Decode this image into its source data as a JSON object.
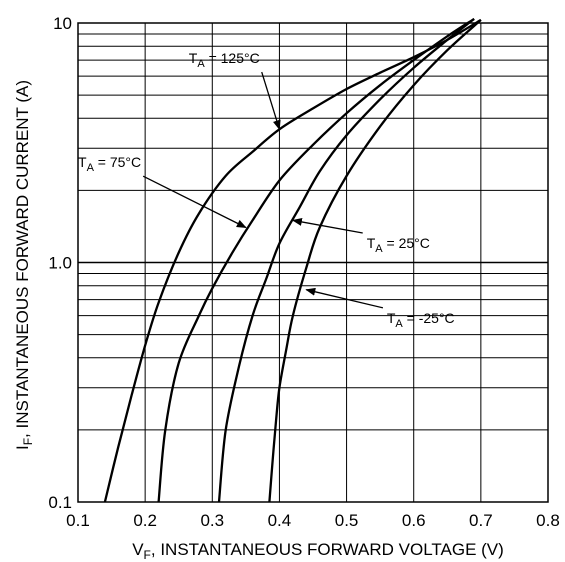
{
  "chart_data": {
    "type": "line",
    "title": "",
    "xlabel": {
      "main": "V",
      "sub": "F",
      "rest": ", INSTANTANEOUS FORWARD VOLTAGE (V)"
    },
    "ylabel": {
      "main": "I",
      "sub": "F",
      "rest": ", INSTANTANEOUS FORWARD CURRENT (A)"
    },
    "xlim": [
      0.1,
      0.8
    ],
    "ylim": [
      0.1,
      10
    ],
    "yscale": "log",
    "grid": true,
    "xticks": [
      "0.1",
      "0.2",
      "0.3",
      "0.4",
      "0.5",
      "0.6",
      "0.7",
      "0.8"
    ],
    "yticks": [
      {
        "value": 0.1,
        "label": "0.1"
      },
      {
        "value": 1,
        "label": "1.0"
      },
      {
        "value": 10,
        "label": "10"
      }
    ],
    "series": [
      {
        "name": "T_A = 125°C",
        "label": {
          "main": "T",
          "sub": "A",
          "rest": " = 125°C"
        },
        "x": [
          0.14,
          0.16,
          0.18,
          0.2,
          0.22,
          0.25,
          0.28,
          0.32,
          0.36,
          0.4,
          0.45,
          0.5,
          0.55,
          0.6,
          0.65,
          0.7
        ],
        "y": [
          0.1,
          0.17,
          0.28,
          0.45,
          0.68,
          1.1,
          1.6,
          2.3,
          2.9,
          3.6,
          4.4,
          5.3,
          6.2,
          7.2,
          8.5,
          10.3
        ]
      },
      {
        "name": "T_A = 75°C",
        "label": {
          "main": "T",
          "sub": "A",
          "rest": " = 75°C"
        },
        "x": [
          0.22,
          0.23,
          0.25,
          0.28,
          0.3,
          0.33,
          0.36,
          0.4,
          0.45,
          0.5,
          0.55,
          0.6,
          0.65,
          0.69
        ],
        "y": [
          0.1,
          0.2,
          0.38,
          0.6,
          0.78,
          1.1,
          1.5,
          2.2,
          3.1,
          4.2,
          5.5,
          7.0,
          8.8,
          10.4
        ]
      },
      {
        "name": "T_A = 25°C",
        "label": {
          "main": "T",
          "sub": "A",
          "rest": " = 25°C"
        },
        "x": [
          0.31,
          0.32,
          0.34,
          0.36,
          0.38,
          0.4,
          0.43,
          0.46,
          0.5,
          0.55,
          0.6,
          0.65,
          0.69
        ],
        "y": [
          0.1,
          0.2,
          0.37,
          0.6,
          0.85,
          1.2,
          1.7,
          2.4,
          3.4,
          4.8,
          6.5,
          8.5,
          10.4
        ]
      },
      {
        "name": "T_A = -25°C",
        "label": {
          "main": "T",
          "sub": "A",
          "rest": " = -25°C"
        },
        "x": [
          0.385,
          0.39,
          0.395,
          0.4,
          0.41,
          0.42,
          0.44,
          0.46,
          0.5,
          0.55,
          0.6,
          0.65,
          0.7
        ],
        "y": [
          0.1,
          0.15,
          0.22,
          0.3,
          0.43,
          0.6,
          0.95,
          1.4,
          2.3,
          3.7,
          5.5,
          7.7,
          10.3
        ]
      }
    ],
    "annotations": [
      {
        "series": 0,
        "text_x": 0.265,
        "text_y": 6.8,
        "point_x": 0.4,
        "point_y": 3.6
      },
      {
        "series": 1,
        "text_x": 0.1,
        "text_y": 2.5,
        "point_x": 0.35,
        "point_y": 1.4
      },
      {
        "series": 2,
        "text_x": 0.53,
        "text_y": 1.15,
        "point_x": 0.42,
        "point_y": 1.5
      },
      {
        "series": 3,
        "text_x": 0.56,
        "text_y": 0.56,
        "point_x": 0.44,
        "point_y": 0.77
      }
    ]
  }
}
